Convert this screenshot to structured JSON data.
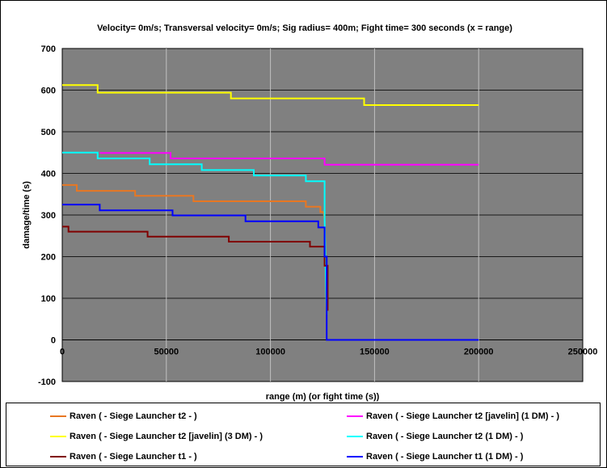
{
  "chart_data": {
    "type": "line",
    "title": "Velocity= 0m/s; Transversal velocity= 0m/s; Sig radius= 400m; Fight time= 300 seconds (x = range)",
    "xlabel": "range (m) (or fight time (s))",
    "ylabel": "damage/time (s)",
    "xlim": [
      0,
      250000
    ],
    "ylim": [
      -100,
      700
    ],
    "xticks": [
      0,
      50000,
      100000,
      150000,
      200000,
      250000
    ],
    "yticks": [
      -100,
      0,
      100,
      200,
      300,
      400,
      500,
      600,
      700
    ],
    "grid": true,
    "plot_background": "#808080",
    "legend_position": "bottom",
    "series": [
      {
        "name": "Raven ( - Siege Launcher t2 - )",
        "color": "#E87722",
        "x": [
          0,
          7000,
          7000,
          35000,
          35000,
          63000,
          63000,
          117000,
          117000,
          124000,
          124000,
          125500,
          126000
        ],
        "y": [
          372,
          372,
          358,
          358,
          346,
          346,
          333,
          333,
          320,
          320,
          307,
          307,
          290
        ]
      },
      {
        "name": "Raven ( - Siege Launcher t2 [javelin] (1 DM) - )",
        "color": "#FF00FF",
        "x": [
          18000,
          52000,
          52000,
          126000,
          126000,
          200000
        ],
        "y": [
          449,
          449,
          436,
          436,
          421,
          421
        ]
      },
      {
        "name": "Raven ( - Siege Launcher t2 [javelin] (3 DM) - )",
        "color": "#FFFF00",
        "x": [
          0,
          17000,
          17000,
          81000,
          81000,
          145000,
          145000,
          200000
        ],
        "y": [
          612,
          612,
          594,
          594,
          580,
          580,
          564,
          564
        ]
      },
      {
        "name": "Raven ( - Siege Launcher t2 (1 DM) - )",
        "color": "#00FFFF",
        "x": [
          0,
          17000,
          17000,
          42000,
          42000,
          67000,
          67000,
          92000,
          92000,
          117000,
          117000,
          126000,
          126000,
          127000
        ],
        "y": [
          450,
          450,
          436,
          436,
          422,
          422,
          408,
          408,
          395,
          395,
          381,
          381,
          290,
          60
        ]
      },
      {
        "name": "Raven ( - Siege Launcher t1 - )",
        "color": "#800000",
        "x": [
          0,
          3000,
          3000,
          41000,
          41000,
          80000,
          80000,
          119000,
          119000,
          126000,
          126000,
          127500,
          127500
        ],
        "y": [
          272,
          272,
          260,
          260,
          248,
          248,
          236,
          236,
          224,
          224,
          178,
          178,
          70
        ]
      },
      {
        "name": "Raven ( - Siege Launcher t1 (1 DM) - )",
        "color": "#0000FF",
        "x": [
          0,
          18000,
          18000,
          53000,
          53000,
          88000,
          88000,
          123000,
          123000,
          126000,
          126000,
          127000,
          127000,
          200000
        ],
        "y": [
          325,
          325,
          311,
          311,
          299,
          299,
          285,
          285,
          270,
          270,
          200,
          200,
          0,
          0
        ]
      }
    ]
  }
}
